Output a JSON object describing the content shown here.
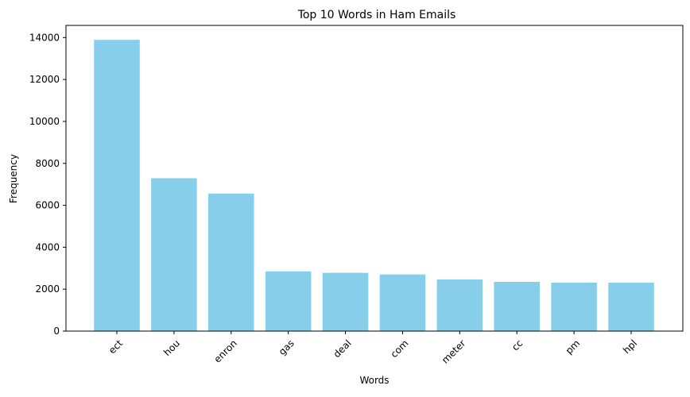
{
  "chart_data": {
    "type": "bar",
    "title": "Top 10 Words in Ham Emails",
    "xlabel": "Words",
    "ylabel": "Frequency",
    "categories": [
      "ect",
      "hou",
      "enron",
      "gas",
      "deal",
      "com",
      "meter",
      "cc",
      "pm",
      "hpl"
    ],
    "values": [
      13890,
      7290,
      6560,
      2850,
      2780,
      2700,
      2460,
      2350,
      2310,
      2310
    ],
    "ylim": [
      0,
      14580
    ],
    "yticks": [
      0,
      2000,
      4000,
      6000,
      8000,
      10000,
      12000,
      14000
    ],
    "bar_color": "#87ceeb",
    "grid": false,
    "legend": "none"
  }
}
